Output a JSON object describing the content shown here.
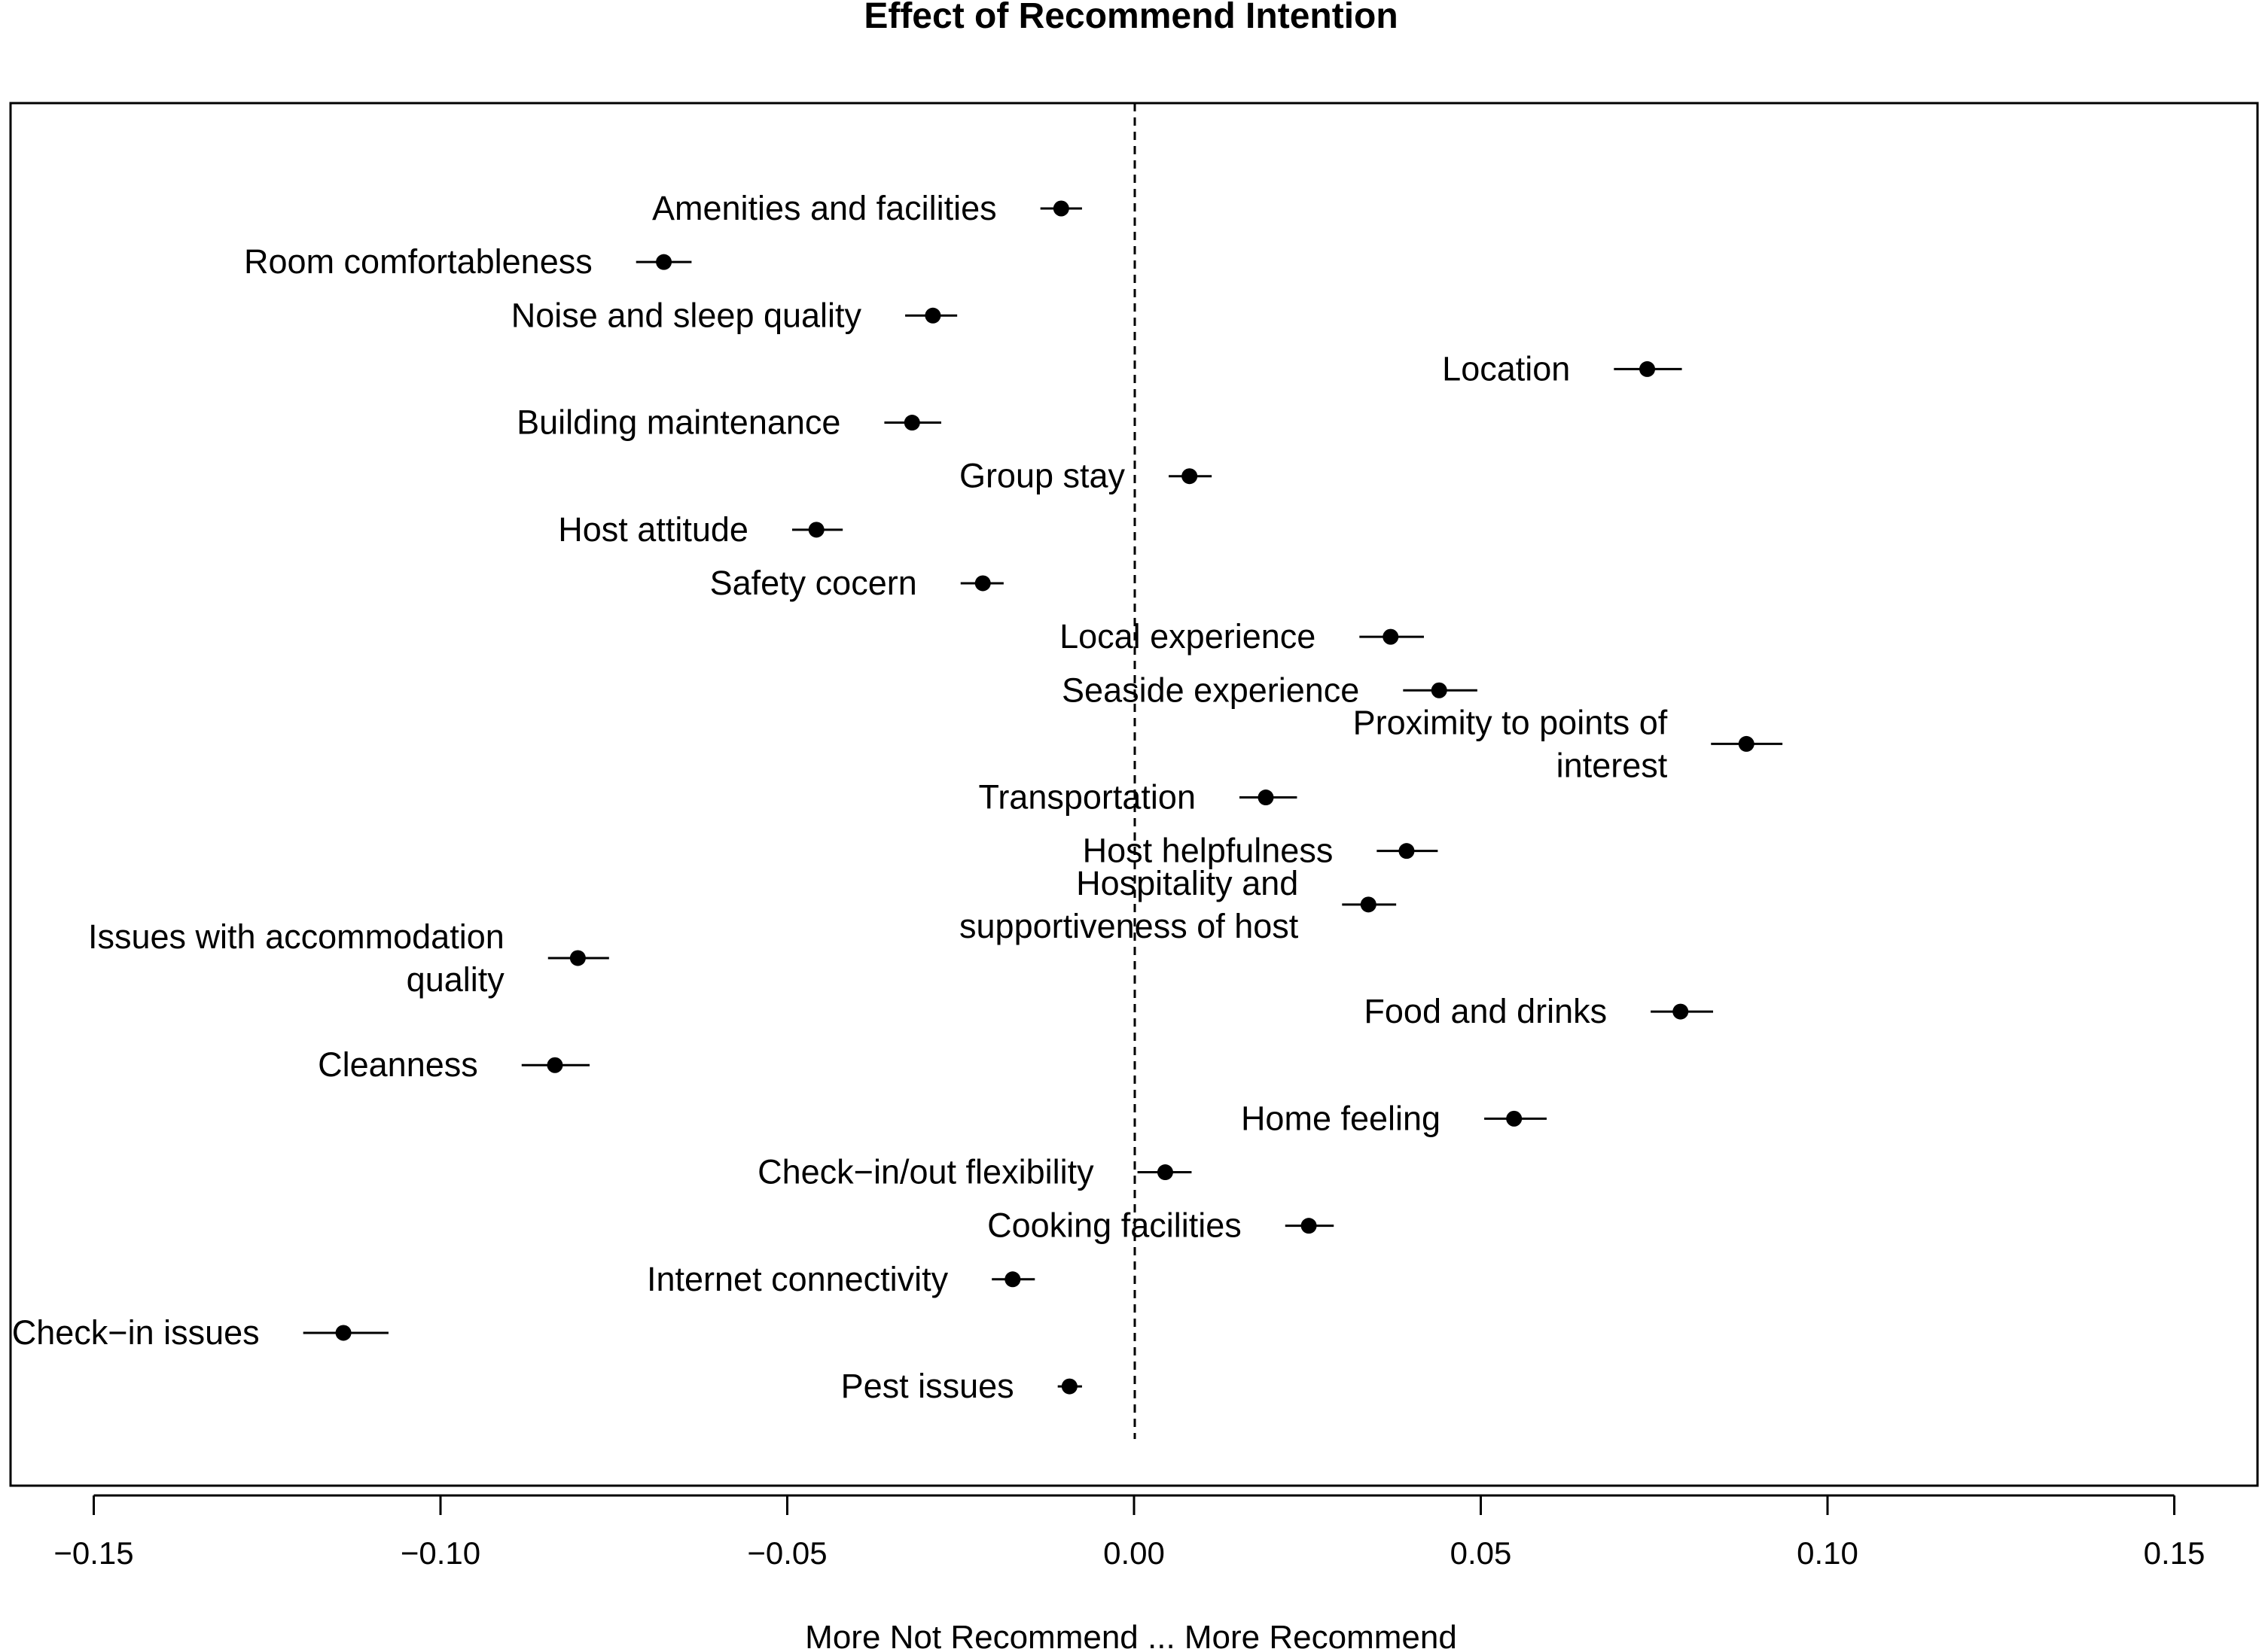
{
  "chart_data": {
    "type": "scatter",
    "subtype": "forest-plot",
    "title": "Effect of Recommend Intention",
    "xlabel": "More Not Recommend ... More Recommend",
    "ylabel": "",
    "xlim": [
      -0.162,
      0.162
    ],
    "xticks": [
      -0.15,
      -0.1,
      -0.05,
      0.0,
      0.05,
      0.1,
      0.15
    ],
    "xtick_labels": [
      "−0.15",
      "−0.10",
      "−0.05",
      "0.00",
      "0.05",
      "0.10",
      "0.15"
    ],
    "reference_line": 0,
    "grid": false,
    "legend": "none",
    "series": [
      {
        "name": "Amenities and facilities",
        "label_lines": [
          "Amenities and facilities"
        ],
        "estimate": -0.0105,
        "ci": [
          -0.0135,
          -0.0075
        ]
      },
      {
        "name": "Room comfortableness",
        "label_lines": [
          "Room comfortableness"
        ],
        "estimate": -0.0678,
        "ci": [
          -0.0718,
          -0.0638
        ]
      },
      {
        "name": "Noise and sleep quality",
        "label_lines": [
          "Noise and sleep quality"
        ],
        "estimate": -0.029,
        "ci": [
          -0.033,
          -0.0255
        ]
      },
      {
        "name": "Location",
        "label_lines": [
          "Location"
        ],
        "estimate": 0.074,
        "ci": [
          0.0692,
          0.079
        ]
      },
      {
        "name": "Building maintenance",
        "label_lines": [
          "Building maintenance"
        ],
        "estimate": -0.032,
        "ci": [
          -0.036,
          -0.0278
        ]
      },
      {
        "name": "Group stay",
        "label_lines": [
          "Group stay"
        ],
        "estimate": 0.008,
        "ci": [
          0.005,
          0.0112
        ]
      },
      {
        "name": "Host attitude",
        "label_lines": [
          "Host attitude"
        ],
        "estimate": -0.0458,
        "ci": [
          -0.0493,
          -0.042
        ]
      },
      {
        "name": "Safety cocern",
        "label_lines": [
          "Safety cocern"
        ],
        "estimate": -0.0218,
        "ci": [
          -0.025,
          -0.0188
        ]
      },
      {
        "name": "Local experience",
        "label_lines": [
          "Local experience"
        ],
        "estimate": 0.037,
        "ci": [
          0.0325,
          0.0418
        ]
      },
      {
        "name": "Seaside experience",
        "label_lines": [
          "Seaside experience"
        ],
        "estimate": 0.044,
        "ci": [
          0.0388,
          0.0495
        ]
      },
      {
        "name": "Proximity to points of interest",
        "label_lines": [
          "Proximity to points of",
          "interest"
        ],
        "estimate": 0.0883,
        "ci": [
          0.0832,
          0.0935
        ]
      },
      {
        "name": "Transportation",
        "label_lines": [
          "Transportation"
        ],
        "estimate": 0.019,
        "ci": [
          0.0152,
          0.0235
        ]
      },
      {
        "name": "Host helpfulness",
        "label_lines": [
          "Host helpfulness"
        ],
        "estimate": 0.0393,
        "ci": [
          0.035,
          0.0438
        ]
      },
      {
        "name": "Hospitality and supportiveness of host",
        "label_lines": [
          "Hospitality and",
          "supportiveness of host"
        ],
        "estimate": 0.0338,
        "ci": [
          0.03,
          0.0378
        ]
      },
      {
        "name": "Issues with accommodation quality",
        "label_lines": [
          "Issues with accommodation",
          "quality"
        ],
        "estimate": -0.0802,
        "ci": [
          -0.0845,
          -0.0757
        ]
      },
      {
        "name": "Food and drinks",
        "label_lines": [
          "Food and drinks"
        ],
        "estimate": 0.0788,
        "ci": [
          0.0745,
          0.0835
        ]
      },
      {
        "name": "Cleanness",
        "label_lines": [
          "Cleanness"
        ],
        "estimate": -0.0835,
        "ci": [
          -0.0883,
          -0.0785
        ]
      },
      {
        "name": "Home feeling",
        "label_lines": [
          "Home feeling"
        ],
        "estimate": 0.0548,
        "ci": [
          0.0505,
          0.0595
        ]
      },
      {
        "name": "Check−in/out flexibility",
        "label_lines": [
          "Check−in/out flexibility"
        ],
        "estimate": 0.0045,
        "ci": [
          0.0005,
          0.0083
        ]
      },
      {
        "name": "Cooking facilities",
        "label_lines": [
          "Cooking facilities"
        ],
        "estimate": 0.0252,
        "ci": [
          0.0218,
          0.0288
        ]
      },
      {
        "name": "Internet connectivity",
        "label_lines": [
          "Internet connectivity"
        ],
        "estimate": -0.0175,
        "ci": [
          -0.0205,
          -0.0143
        ]
      },
      {
        "name": "Check−in issues",
        "label_lines": [
          "Check−in issues"
        ],
        "estimate": -0.114,
        "ci": [
          -0.1198,
          -0.1075
        ]
      },
      {
        "name": "Pest issues",
        "label_lines": [
          "Pest issues"
        ],
        "estimate": -0.0093,
        "ci": [
          -0.011,
          -0.0075
        ]
      }
    ]
  }
}
